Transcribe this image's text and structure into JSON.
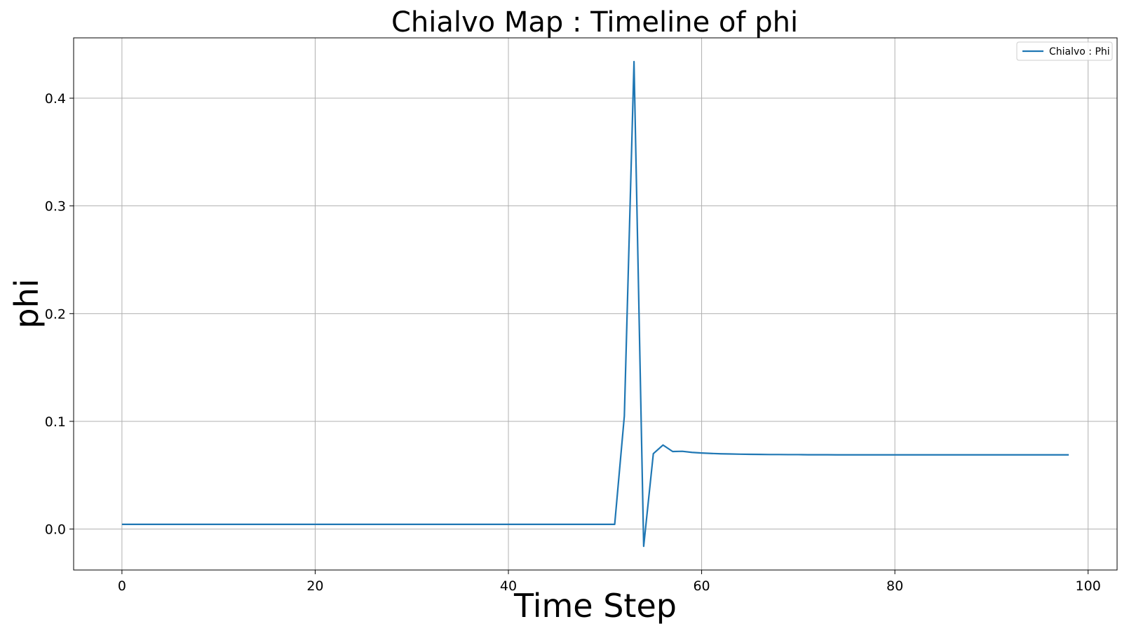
{
  "chart_data": {
    "type": "line",
    "title": "Chialvo Map : Timeline of phi",
    "xlabel": "Time Step",
    "ylabel": "phi",
    "xlim": [
      -5,
      103
    ],
    "ylim": [
      -0.038,
      0.456
    ],
    "x_ticks": [
      0,
      20,
      40,
      60,
      80,
      100
    ],
    "x_tick_labels": [
      "0",
      "20",
      "40",
      "60",
      "80",
      "100"
    ],
    "y_ticks": [
      0.0,
      0.1,
      0.2,
      0.3,
      0.4
    ],
    "y_tick_labels": [
      "0.0",
      "0.1",
      "0.2",
      "0.3",
      "0.4"
    ],
    "grid": true,
    "legend_position": "top-right",
    "series": [
      {
        "name": "Chialvo : Phi",
        "color": "#1f77b4",
        "x": [
          0,
          1,
          2,
          3,
          4,
          5,
          6,
          7,
          8,
          9,
          10,
          11,
          12,
          13,
          14,
          15,
          16,
          17,
          18,
          19,
          20,
          21,
          22,
          23,
          24,
          25,
          26,
          27,
          28,
          29,
          30,
          31,
          32,
          33,
          34,
          35,
          36,
          37,
          38,
          39,
          40,
          41,
          42,
          43,
          44,
          45,
          46,
          47,
          48,
          49,
          50,
          51,
          52,
          53,
          54,
          55,
          56,
          57,
          58,
          59,
          60,
          61,
          62,
          63,
          64,
          65,
          66,
          67,
          68,
          69,
          70,
          71,
          72,
          73,
          74,
          75,
          76,
          77,
          78,
          79,
          80,
          81,
          82,
          83,
          84,
          85,
          86,
          87,
          88,
          89,
          90,
          91,
          92,
          93,
          94,
          95,
          96,
          97,
          98
        ],
        "y": [
          0.0044,
          0.0044,
          0.0044,
          0.0044,
          0.0044,
          0.0044,
          0.0044,
          0.0044,
          0.0044,
          0.0044,
          0.0044,
          0.0044,
          0.0044,
          0.0044,
          0.0044,
          0.0044,
          0.0044,
          0.0044,
          0.0044,
          0.0044,
          0.0044,
          0.0044,
          0.0044,
          0.0044,
          0.0044,
          0.0044,
          0.0044,
          0.0044,
          0.0044,
          0.0044,
          0.0044,
          0.0044,
          0.0044,
          0.0044,
          0.0044,
          0.0044,
          0.0044,
          0.0044,
          0.0044,
          0.0044,
          0.0044,
          0.0044,
          0.0044,
          0.0044,
          0.0044,
          0.0044,
          0.0044,
          0.0044,
          0.0044,
          0.0044,
          0.0044,
          0.0044,
          0.105,
          0.434,
          -0.016,
          0.07,
          0.078,
          0.072,
          0.0722,
          0.0712,
          0.0706,
          0.0702,
          0.0699,
          0.0697,
          0.0695,
          0.0694,
          0.0693,
          0.0692,
          0.0692,
          0.0691,
          0.0691,
          0.069,
          0.069,
          0.069,
          0.0689,
          0.0689,
          0.0689,
          0.0689,
          0.0689,
          0.0689,
          0.0689,
          0.0689,
          0.0689,
          0.0689,
          0.0689,
          0.0689,
          0.0689,
          0.0689,
          0.0689,
          0.0689,
          0.0689,
          0.0689,
          0.0689,
          0.0689,
          0.0689,
          0.0689,
          0.0689,
          0.0689,
          0.0689
        ]
      }
    ]
  }
}
